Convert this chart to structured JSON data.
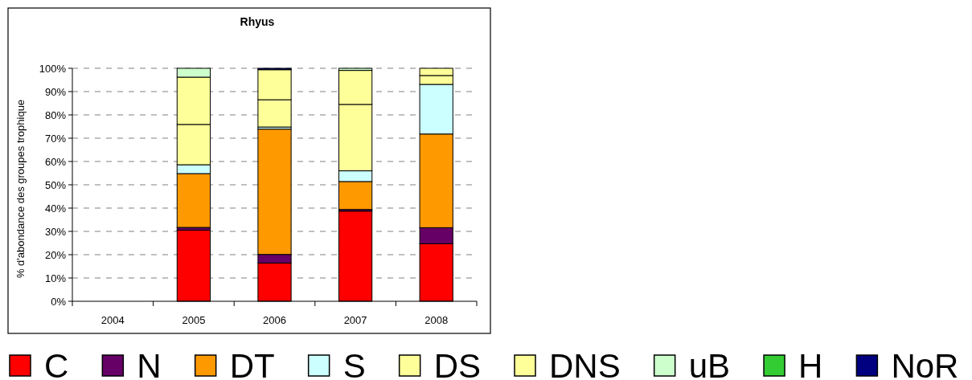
{
  "chart_data": {
    "type": "bar",
    "title": "Rhyus",
    "ylabel": "% d'abondance des groupes trophique",
    "categories": [
      "2004",
      "2005",
      "2006",
      "2007",
      "2008"
    ],
    "stacked": true,
    "series": [
      {
        "name": "C",
        "color": "#ff0000",
        "values": [
          null,
          30.5,
          16.4,
          38.7,
          24.7
        ]
      },
      {
        "name": "N",
        "color": "#660066",
        "values": [
          null,
          1.2,
          3.7,
          0.7,
          6.9
        ]
      },
      {
        "name": "DT",
        "color": "#ff9900",
        "values": [
          null,
          23.1,
          53.8,
          12.0,
          40.2
        ]
      },
      {
        "name": "S",
        "color": "#ccffff",
        "values": [
          null,
          3.8,
          0.9,
          4.6,
          21.3
        ]
      },
      {
        "name": "DS",
        "color": "#ffff99",
        "values": [
          null,
          17.3,
          11.7,
          28.5,
          3.8
        ]
      },
      {
        "name": "DNS",
        "color": "#ffff99",
        "values": [
          null,
          20.3,
          12.9,
          14.6,
          3.1
        ]
      },
      {
        "name": "uB",
        "color": "#ccffcc",
        "values": [
          null,
          3.8,
          null,
          0.9,
          null
        ]
      },
      {
        "name": "H",
        "color": "#33cc33",
        "values": [
          null,
          null,
          null,
          null,
          null
        ]
      },
      {
        "name": "NoR",
        "color": "#000080",
        "values": [
          null,
          null,
          0.6,
          null,
          null
        ]
      }
    ],
    "ylim": [
      0,
      100
    ],
    "yticks": [
      {
        "value": 0,
        "label": "0%"
      },
      {
        "value": 10,
        "label": "10%"
      },
      {
        "value": 20,
        "label": "20%"
      },
      {
        "value": 30,
        "label": "30%"
      },
      {
        "value": 40,
        "label": "40%"
      },
      {
        "value": 50,
        "label": "50%"
      },
      {
        "value": 60,
        "label": "60%"
      },
      {
        "value": 70,
        "label": "70%"
      },
      {
        "value": 80,
        "label": "80%"
      },
      {
        "value": 90,
        "label": "90%"
      },
      {
        "value": 100,
        "label": "100%"
      }
    ],
    "grid": "y",
    "legend": "bottom"
  }
}
